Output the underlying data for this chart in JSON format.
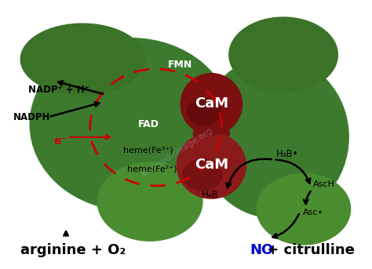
{
  "bg_color": "#ffffff",
  "green_dark": "#3a7228",
  "green_mid": "#4a8c30",
  "green_main": "#3d7a2e",
  "red_dark": "#7a1010",
  "red_mid": "#8b1a1a",
  "red_light": "#9b2020",
  "red_arrow": "#cc0000",
  "blue_text": "#0000cc",
  "black": "#000000",
  "white": "#ffffff",
  "label_NADP": "NADP⁺ + H⁺",
  "label_NADPH": "NADPH",
  "label_FAD": "FAD",
  "label_FMN": "FMN",
  "label_CaM": "CaM",
  "label_heme3": "heme(Fe³⁺)",
  "label_heme2": "heme(Fe²⁺)",
  "label_H4B": "H₄B",
  "label_H3B": "H₃B•",
  "label_AscH": "AscH",
  "label_Asc": "Asc•",
  "label_e": "e⁻",
  "title_left": "arginine + O₂",
  "title_right_blue": "NO",
  "title_right_black": " + citrulline"
}
